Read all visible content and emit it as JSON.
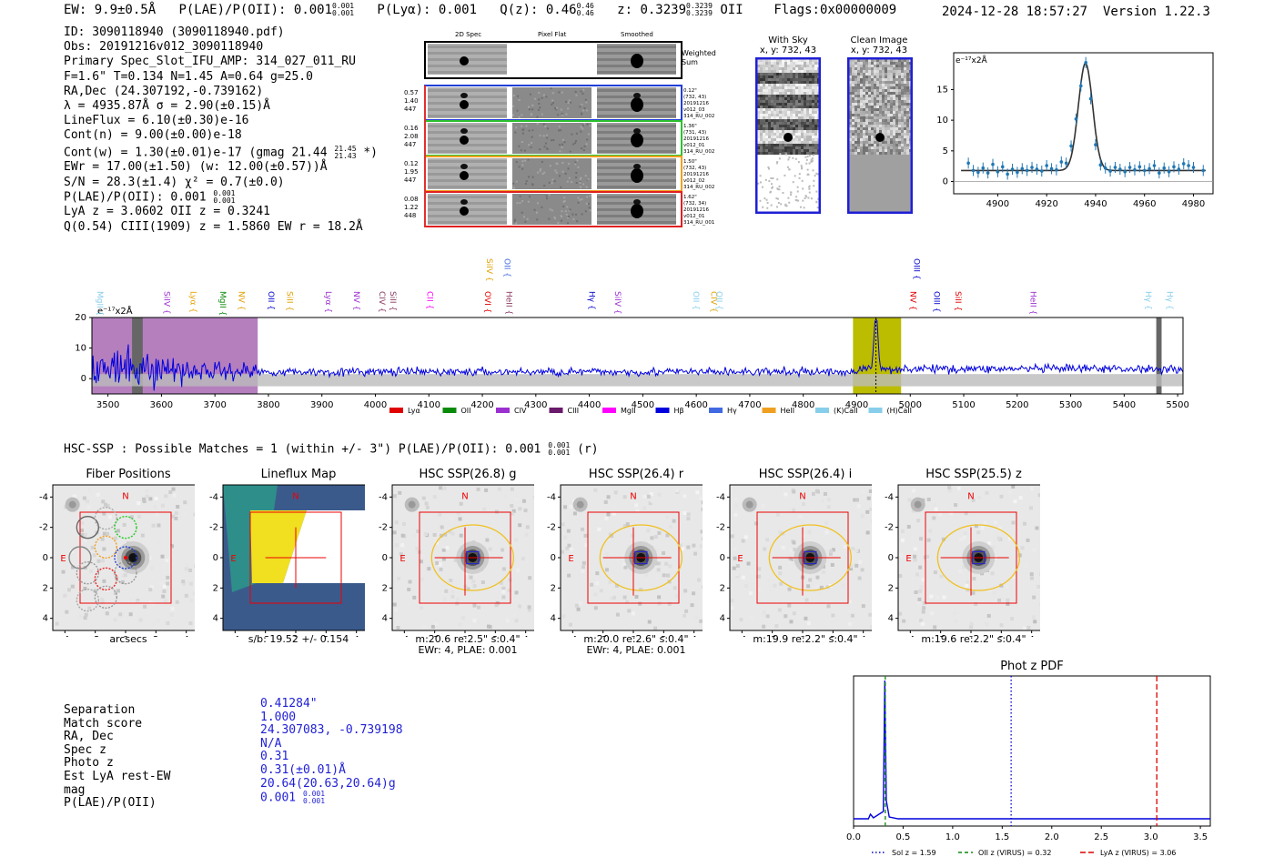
{
  "header": {
    "ew": "EW: 9.9±0.5Å",
    "plae_label": "P(LAE)/P(OII): 0.001",
    "plae_hi": "0.001",
    "plae_lo": "0.001",
    "plya": "P(Lyα): 0.001",
    "qz_label": "Q(z): 0.46",
    "qz_hi": "0.46",
    "qz_lo": "0.46",
    "z_label": "z: 0.3239",
    "z_hi": "0.3239",
    "z_lo": "0.3239",
    "z_line": "OII",
    "flags": "Flags:0x00000009",
    "datetime": "2024-12-28 18:57:27",
    "version": "Version 1.22.3"
  },
  "info": {
    "id": "ID: 3090118940 (3090118940.pdf)",
    "obs": "Obs: 20191216v012_3090118940",
    "primary": "Primary Spec_Slot_IFU_AMP: 314_027_011_RU",
    "params": "F=1.6\"  T=0.134  N=1.45  A=0.64  g=25.0",
    "radec": "RA,Dec (24.307192,-0.739162)",
    "lambda": "λ = 4935.87Å  σ = 2.90(±0.15)Å",
    "lineflux": "LineFlux = 6.10(±0.30)e-16",
    "contn": "Cont(n) = 9.00(±0.00)e-18",
    "contw": "Cont(w) = 1.30(±0.01)e-17 (gmag 21.44",
    "contw_hi": "21.45",
    "contw_lo": "21.43",
    "contw_end": " *)",
    "ewr": "EWr = 17.00(±1.50) (w: 12.00(±0.57))Å",
    "sn": "S/N = 28.3(±1.4)  χ² = 0.7(±0.0)",
    "plae": "P(LAE)/P(OII): 0.001",
    "plae_hi": "0.001",
    "plae_lo": "0.001",
    "lya_z": "LyA z = 3.0602  OII z = 0.3241",
    "q": "Q(0.54) CIII(1909) z = 1.5860  EW r = 18.2Å"
  },
  "fiber_panel": {
    "col_labels": [
      "2D Spec",
      "Pixel Flat",
      "Smoothed"
    ],
    "weighted_sum": "Weighted Sum",
    "rows": [
      {
        "left": [
          "0.57",
          "1.40",
          "447"
        ],
        "right": [
          "0.12\"",
          "(732, 43)",
          "20191216",
          "v012_03",
          "314_RU_002"
        ],
        "color": "#1f3fd6"
      },
      {
        "left": [
          "0.16",
          "2.08",
          "447"
        ],
        "right": [
          "1.36\"",
          "(731, 43)",
          "20191216",
          "v012_01",
          "314_RU_002"
        ],
        "color": "#2ec02e"
      },
      {
        "left": [
          "0.12",
          "1.95",
          "447"
        ],
        "right": [
          "1.50\"",
          "(732, 43)",
          "20191216",
          "v012_02",
          "314_RU_002"
        ],
        "color": "#f0a020"
      },
      {
        "left": [
          "0.08",
          "1.22",
          "448"
        ],
        "right": [
          "1.62\"",
          "(732, 34)",
          "20191216",
          "v012_01",
          "314_RU_001"
        ],
        "color": "#e02020"
      }
    ]
  },
  "sky": {
    "with_sky_title": "With Sky",
    "with_sky_coords": "x, y: 732, 43",
    "clean_title": "Clean Image",
    "clean_coords": "x, y: 732, 43"
  },
  "zoom_chart": {
    "unit": "e⁻¹⁷x2Å",
    "ylim": [
      -2,
      21
    ],
    "yticks": [
      "0",
      "5",
      "10",
      "15"
    ],
    "xlim": [
      4882,
      4988
    ],
    "xticks": [
      "4900",
      "4920",
      "4940",
      "4960",
      "4980"
    ],
    "fit_center": 4935.87,
    "fit_sigma": 2.9,
    "fit_peak": 17.5,
    "fit_base": 1.8,
    "points": [
      [
        4888,
        3.0
      ],
      [
        4890,
        1.8
      ],
      [
        4892,
        1.5
      ],
      [
        4894,
        2.2
      ],
      [
        4896,
        1.4
      ],
      [
        4898,
        2.8
      ],
      [
        4900,
        1.6
      ],
      [
        4902,
        2.4
      ],
      [
        4904,
        1.2
      ],
      [
        4906,
        2.0
      ],
      [
        4908,
        1.5
      ],
      [
        4910,
        2.1
      ],
      [
        4912,
        1.8
      ],
      [
        4914,
        2.3
      ],
      [
        4916,
        2.0
      ],
      [
        4918,
        1.7
      ],
      [
        4920,
        2.6
      ],
      [
        4922,
        2.1
      ],
      [
        4924,
        1.9
      ],
      [
        4926,
        3.2
      ],
      [
        4928,
        3.0
      ],
      [
        4930,
        5.8
      ],
      [
        4932,
        10.2
      ],
      [
        4934,
        15.6
      ],
      [
        4936,
        19.4
      ],
      [
        4938,
        13.5
      ],
      [
        4940,
        6.0
      ],
      [
        4942,
        2.7
      ],
      [
        4944,
        2.2
      ],
      [
        4946,
        1.7
      ],
      [
        4948,
        2.3
      ],
      [
        4950,
        2.0
      ],
      [
        4952,
        1.6
      ],
      [
        4954,
        2.3
      ],
      [
        4956,
        1.9
      ],
      [
        4958,
        2.4
      ],
      [
        4960,
        1.8
      ],
      [
        4962,
        2.1
      ],
      [
        4964,
        2.6
      ],
      [
        4966,
        1.4
      ],
      [
        4968,
        2.2
      ],
      [
        4970,
        1.6
      ],
      [
        4972,
        2.4
      ],
      [
        4974,
        2.0
      ],
      [
        4976,
        2.9
      ],
      [
        4978,
        2.6
      ],
      [
        4980,
        2.3
      ],
      [
        4984,
        1.8
      ]
    ]
  },
  "spectrum": {
    "unit": "e⁻¹⁷x2Å",
    "ylim": [
      -5,
      20
    ],
    "yticks": [
      "0",
      "10",
      "20"
    ],
    "xlim": [
      3470,
      5510
    ],
    "xticks": [
      "3500",
      "3600",
      "3700",
      "3800",
      "3900",
      "4000",
      "4100",
      "4200",
      "4300",
      "4400",
      "4500",
      "4600",
      "4700",
      "4800",
      "4900",
      "5000",
      "5100",
      "5200",
      "5300",
      "5400",
      "5500"
    ],
    "lines": [
      {
        "name": "MgII",
        "wave": 3480,
        "color": "#87ceeb",
        "row": 1
      },
      {
        "name": "SiIV",
        "wave": 3605,
        "color": "#9b30d0",
        "row": 1
      },
      {
        "name": "Lyα",
        "wave": 3655,
        "color": "#e8a000",
        "row": 1
      },
      {
        "name": "MgII",
        "wave": 3710,
        "color": "#0a8a0a",
        "row": 1
      },
      {
        "name": "NV",
        "wave": 3745,
        "color": "#e0a000",
        "row": 1
      },
      {
        "name": "OII",
        "wave": 3800,
        "color": "#0000cc",
        "row": 1
      },
      {
        "name": "SiII",
        "wave": 3835,
        "color": "#e0a000",
        "row": 1
      },
      {
        "name": "Lyα",
        "wave": 3907,
        "color": "#9b30d0",
        "row": 1
      },
      {
        "name": "NV",
        "wave": 3960,
        "color": "#9b30d0",
        "row": 1
      },
      {
        "name": "CIV",
        "wave": 4008,
        "color": "#8b3a62",
        "row": 1
      },
      {
        "name": "SiII",
        "wave": 4028,
        "color": "#8b3a62",
        "row": 1
      },
      {
        "name": "CII",
        "wave": 4097,
        "color": "#ff00ff",
        "row": 1
      },
      {
        "name": "SiIV",
        "wave": 4208,
        "color": "#e0a000",
        "row": 0
      },
      {
        "name": "OVI",
        "wave": 4205,
        "color": "#e00000",
        "row": 1
      },
      {
        "name": "OII",
        "wave": 4242,
        "color": "#4169e1",
        "row": 0
      },
      {
        "name": "HeII",
        "wave": 4245,
        "color": "#8b3a62",
        "row": 1
      },
      {
        "name": "Hγ",
        "wave": 4400,
        "color": "#0000cc",
        "row": 1
      },
      {
        "name": "SiIV",
        "wave": 4448,
        "color": "#9b30d0",
        "row": 1
      },
      {
        "name": "OII",
        "wave": 4595,
        "color": "#87ceeb",
        "row": 1
      },
      {
        "name": "CIV",
        "wave": 4628,
        "color": "#e0a000",
        "row": 1
      },
      {
        "name": "OII",
        "wave": 4638,
        "color": "#87ceeb",
        "row": 1
      },
      {
        "name": "OIII",
        "wave": 5007,
        "color": "#0000cc",
        "row": 0
      },
      {
        "name": "NV",
        "wave": 5000,
        "color": "#e00000",
        "row": 1
      },
      {
        "name": "OIII",
        "wave": 5045,
        "color": "#0000cc",
        "row": 1
      },
      {
        "name": "SiII",
        "wave": 5085,
        "color": "#e00000",
        "row": 1
      },
      {
        "name": "HeII",
        "wave": 5225,
        "color": "#9b30d0",
        "row": 1
      },
      {
        "name": "Hγ",
        "wave": 5440,
        "color": "#87ceeb",
        "row": 1
      },
      {
        "name": "Hγ",
        "wave": 5480,
        "color": "#87ceeb",
        "row": 1
      }
    ],
    "legend": [
      {
        "label": "Lyα",
        "color": "#e00000"
      },
      {
        "label": "OII",
        "color": "#0a8a0a"
      },
      {
        "label": "CIV",
        "color": "#9b30d0"
      },
      {
        "label": "CIII",
        "color": "#6a1a6a"
      },
      {
        "label": "MgII",
        "color": "#ff00ff"
      },
      {
        "label": "Hβ",
        "color": "#0000dd"
      },
      {
        "label": "Hγ",
        "color": "#4169e1"
      },
      {
        "label": "HeII",
        "color": "#f0a020"
      },
      {
        "label": "(K)CaII",
        "color": "#87ceeb"
      },
      {
        "label": "(H)CaII",
        "color": "#87ceeb"
      }
    ],
    "masked_band": [
      3470,
      3780
    ],
    "line_band": [
      4893,
      4983
    ],
    "line_center": 4935.87,
    "gaps": [
      3545,
      3565,
      5460,
      5470
    ]
  },
  "hsc": {
    "summary": "HSC-SSP : Possible Matches = 1 (within +/- 3\")  P(LAE)/P(OII): 0.001",
    "summary_hi": "0.001",
    "summary_lo": "0.001",
    "summary_end": "(r)",
    "cutouts": [
      {
        "title": "Fiber Positions",
        "caption1": "arcsecs",
        "caption2": ""
      },
      {
        "title": "Lineflux Map",
        "caption1": "s/b: 19.52 +/- 0.154",
        "caption2": ""
      },
      {
        "title": "HSC SSP(26.8) g",
        "caption1": "m:20.6  re:2.5\"  s:0.4\"",
        "caption2": "EWr: 4, PLAE: 0.001"
      },
      {
        "title": "HSC SSP(26.4) r",
        "caption1": "m:20.0  re:2.6\"  s:0.4\"",
        "caption2": "EWr: 4, PLAE: 0.001"
      },
      {
        "title": "HSC SSP(26.4) i",
        "caption1": "m:19.9  re:2.2\"  s:0.4\"",
        "caption2": ""
      },
      {
        "title": "HSC SSP(25.5) z",
        "caption1": "m:19.6  re:2.2\"  s:0.4\"",
        "caption2": ""
      }
    ],
    "axis_ticks": [
      "-4",
      "-2",
      "0",
      "2",
      "4"
    ],
    "north_label": "N",
    "east_label": "E"
  },
  "match": {
    "labels": [
      "Separation",
      "Match score",
      "RA, Dec",
      "Spec z",
      "Photo z",
      "Est LyA rest-EW",
      "mag",
      "P(LAE)/P(OII)"
    ],
    "values": [
      "0.41284\"",
      "1.000",
      "24.307083, -0.739198",
      "N/A",
      "0.31",
      "0.31(±0.01)Å",
      "20.64(20.63,20.64)g",
      "0.001"
    ],
    "plae_hi": "0.001",
    "plae_lo": "0.001"
  },
  "photz": {
    "title": "Phot z PDF",
    "xlim": [
      0.0,
      3.6
    ],
    "xticks": [
      "0.0",
      "0.5",
      "1.0",
      "1.5",
      "2.0",
      "2.5",
      "3.0",
      "3.5"
    ],
    "sol_z": 1.59,
    "oii_z": 0.32,
    "lya_z": 3.06,
    "legend": [
      {
        "label": "Sol z = 1.59",
        "color": "#0000cc"
      },
      {
        "label": "OII z (VIRUS) = 0.32",
        "color": "#0a8a0a"
      },
      {
        "label": "LyA z (VIRUS) = 3.06",
        "color": "#dd0000"
      }
    ]
  },
  "colors": {
    "accent_blue": "#1f1fd6",
    "fit_band": "#bcbc00",
    "mask": "#b57fbe"
  }
}
